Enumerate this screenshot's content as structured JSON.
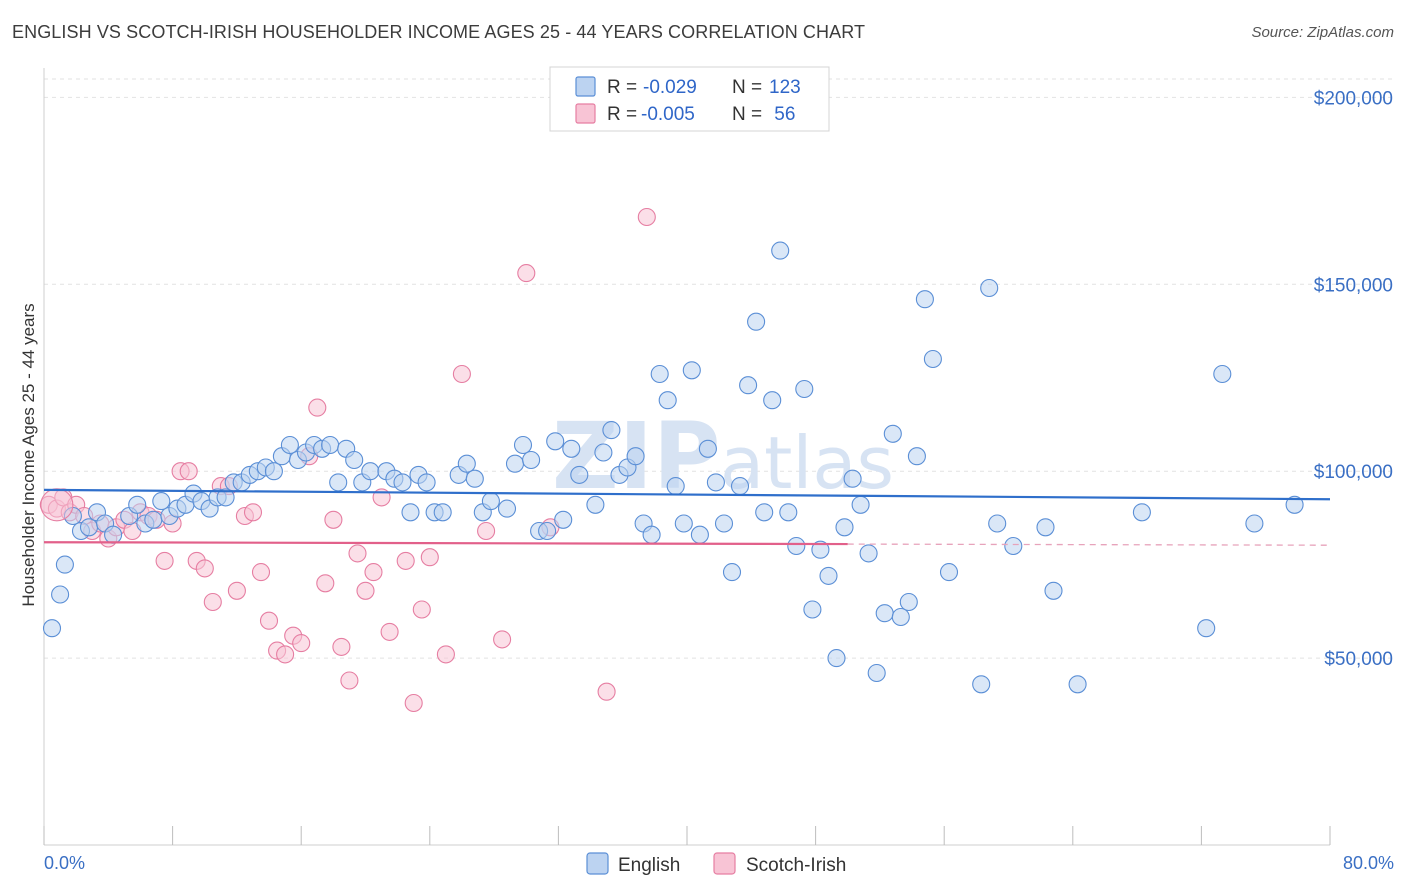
{
  "title": "ENGLISH VS SCOTCH-IRISH HOUSEHOLDER INCOME AGES 25 - 44 YEARS CORRELATION CHART",
  "source": "Source: ZipAtlas.com",
  "watermark": {
    "zip": "ZIP",
    "atlas": "atlas"
  },
  "legend": {
    "english": {
      "r_label": "R = ",
      "r_value": "-0.029",
      "n_label": "N = ",
      "n_value": "123"
    },
    "scotch": {
      "r_label": "R = ",
      "r_value": "-0.005",
      "n_label": "N = ",
      "n_value": " 56"
    }
  },
  "chart_data": {
    "type": "scatter",
    "xlabel": "",
    "ylabel": "Householder Income Ages 25 - 44 years",
    "xlim": [
      0,
      80
    ],
    "ylim": [
      0,
      210000
    ],
    "x_tick_labels": {
      "min": "0.0%",
      "max": "80.0%"
    },
    "y_ticks": [
      {
        "value": 50000,
        "label": "$50,000"
      },
      {
        "value": 100000,
        "label": "$100,000"
      },
      {
        "value": 150000,
        "label": "$150,000"
      },
      {
        "value": 200000,
        "label": "$200,000"
      }
    ],
    "grid": true,
    "legend_position": "top-center",
    "series": [
      {
        "name": "English",
        "color": "#5b8fd6",
        "fill": "#bcd3f1",
        "trend": {
          "x0": 0,
          "y0": 95000,
          "x1": 80,
          "y1": 92500
        },
        "points": [
          [
            0.5,
            58000
          ],
          [
            1.0,
            67000
          ],
          [
            1.3,
            75000
          ],
          [
            1.8,
            88000
          ],
          [
            2.3,
            84000
          ],
          [
            2.8,
            85000
          ],
          [
            3.3,
            89000
          ],
          [
            3.8,
            86000
          ],
          [
            4.3,
            83000
          ],
          [
            5.3,
            88000
          ],
          [
            5.8,
            91000
          ],
          [
            6.3,
            86000
          ],
          [
            6.8,
            87000
          ],
          [
            7.3,
            92000
          ],
          [
            7.8,
            88000
          ],
          [
            8.3,
            90000
          ],
          [
            8.8,
            91000
          ],
          [
            9.3,
            94000
          ],
          [
            9.8,
            92000
          ],
          [
            10.3,
            90000
          ],
          [
            10.8,
            93000
          ],
          [
            11.3,
            93000
          ],
          [
            11.8,
            97000
          ],
          [
            12.3,
            97000
          ],
          [
            12.8,
            99000
          ],
          [
            13.3,
            100000
          ],
          [
            13.8,
            101000
          ],
          [
            14.3,
            100000
          ],
          [
            14.8,
            104000
          ],
          [
            15.3,
            107000
          ],
          [
            15.8,
            103000
          ],
          [
            16.3,
            105000
          ],
          [
            16.8,
            107000
          ],
          [
            17.3,
            106000
          ],
          [
            17.8,
            107000
          ],
          [
            18.3,
            97000
          ],
          [
            18.8,
            106000
          ],
          [
            19.3,
            103000
          ],
          [
            19.8,
            97000
          ],
          [
            20.3,
            100000
          ],
          [
            21.3,
            100000
          ],
          [
            21.8,
            98000
          ],
          [
            22.3,
            97000
          ],
          [
            22.8,
            89000
          ],
          [
            23.3,
            99000
          ],
          [
            23.8,
            97000
          ],
          [
            24.3,
            89000
          ],
          [
            24.8,
            89000
          ],
          [
            25.8,
            99000
          ],
          [
            26.3,
            102000
          ],
          [
            26.8,
            98000
          ],
          [
            27.3,
            89000
          ],
          [
            27.8,
            92000
          ],
          [
            28.8,
            90000
          ],
          [
            29.3,
            102000
          ],
          [
            29.8,
            107000
          ],
          [
            30.3,
            103000
          ],
          [
            30.8,
            84000
          ],
          [
            31.3,
            84000
          ],
          [
            31.8,
            108000
          ],
          [
            32.3,
            87000
          ],
          [
            32.8,
            106000
          ],
          [
            33.3,
            99000
          ],
          [
            34.3,
            91000
          ],
          [
            34.8,
            105000
          ],
          [
            35.3,
            111000
          ],
          [
            35.8,
            99000
          ],
          [
            36.3,
            101000
          ],
          [
            36.8,
            104000
          ],
          [
            37.3,
            86000
          ],
          [
            37.8,
            83000
          ],
          [
            38.3,
            126000
          ],
          [
            38.8,
            119000
          ],
          [
            39.3,
            96000
          ],
          [
            39.8,
            86000
          ],
          [
            40.3,
            127000
          ],
          [
            40.8,
            83000
          ],
          [
            41.3,
            106000
          ],
          [
            41.8,
            97000
          ],
          [
            42.3,
            86000
          ],
          [
            42.8,
            73000
          ],
          [
            43.3,
            96000
          ],
          [
            43.8,
            123000
          ],
          [
            44.3,
            140000
          ],
          [
            44.8,
            89000
          ],
          [
            45.3,
            119000
          ],
          [
            45.8,
            159000
          ],
          [
            46.3,
            89000
          ],
          [
            46.8,
            80000
          ],
          [
            47.3,
            122000
          ],
          [
            47.8,
            63000
          ],
          [
            48.3,
            79000
          ],
          [
            48.8,
            72000
          ],
          [
            49.3,
            50000
          ],
          [
            49.8,
            85000
          ],
          [
            50.3,
            98000
          ],
          [
            50.8,
            91000
          ],
          [
            51.3,
            78000
          ],
          [
            51.8,
            46000
          ],
          [
            52.3,
            62000
          ],
          [
            52.8,
            110000
          ],
          [
            53.3,
            61000
          ],
          [
            53.8,
            65000
          ],
          [
            54.3,
            104000
          ],
          [
            54.8,
            146000
          ],
          [
            55.3,
            130000
          ],
          [
            56.3,
            73000
          ],
          [
            58.3,
            43000
          ],
          [
            58.8,
            149000
          ],
          [
            59.3,
            86000
          ],
          [
            60.3,
            80000
          ],
          [
            62.3,
            85000
          ],
          [
            62.8,
            68000
          ],
          [
            64.3,
            43000
          ],
          [
            68.3,
            89000
          ],
          [
            72.3,
            58000
          ],
          [
            73.3,
            126000
          ],
          [
            75.3,
            86000
          ],
          [
            77.8,
            91000
          ]
        ]
      },
      {
        "name": "Scotch-Irish",
        "color": "#e67ea2",
        "fill": "#f8c4d5",
        "trend": {
          "x0": 0,
          "y0": 81000,
          "x1": 50,
          "y1": 80500
        },
        "trend_dashed_to": {
          "x": 80,
          "y": 80200
        },
        "points": [
          [
            0.3,
            91000
          ],
          [
            0.8,
            90000
          ],
          [
            1.2,
            93000
          ],
          [
            1.6,
            89000
          ],
          [
            2.0,
            91000
          ],
          [
            2.5,
            88000
          ],
          [
            3.0,
            84000
          ],
          [
            3.5,
            86000
          ],
          [
            4.0,
            82000
          ],
          [
            4.5,
            85000
          ],
          [
            5.0,
            87000
          ],
          [
            5.5,
            84000
          ],
          [
            6.0,
            89000
          ],
          [
            6.5,
            88000
          ],
          [
            7.0,
            87000
          ],
          [
            7.5,
            76000
          ],
          [
            8.0,
            86000
          ],
          [
            8.5,
            100000
          ],
          [
            9.0,
            100000
          ],
          [
            9.5,
            76000
          ],
          [
            10.0,
            74000
          ],
          [
            10.5,
            65000
          ],
          [
            11.0,
            96000
          ],
          [
            11.5,
            96000
          ],
          [
            12.0,
            68000
          ],
          [
            12.5,
            88000
          ],
          [
            13.0,
            89000
          ],
          [
            13.5,
            73000
          ],
          [
            14.0,
            60000
          ],
          [
            14.5,
            52000
          ],
          [
            15.0,
            51000
          ],
          [
            15.5,
            56000
          ],
          [
            16.0,
            54000
          ],
          [
            16.5,
            104000
          ],
          [
            17.0,
            117000
          ],
          [
            17.5,
            70000
          ],
          [
            18.0,
            87000
          ],
          [
            18.5,
            53000
          ],
          [
            19.0,
            44000
          ],
          [
            19.5,
            78000
          ],
          [
            20.0,
            68000
          ],
          [
            20.5,
            73000
          ],
          [
            21.0,
            93000
          ],
          [
            21.5,
            57000
          ],
          [
            22.5,
            76000
          ],
          [
            23.0,
            38000
          ],
          [
            23.5,
            63000
          ],
          [
            24.0,
            77000
          ],
          [
            25.0,
            51000
          ],
          [
            26.0,
            126000
          ],
          [
            27.5,
            84000
          ],
          [
            28.5,
            55000
          ],
          [
            30.0,
            153000
          ],
          [
            31.5,
            85000
          ],
          [
            35.0,
            41000
          ],
          [
            37.5,
            168000
          ]
        ]
      }
    ]
  }
}
